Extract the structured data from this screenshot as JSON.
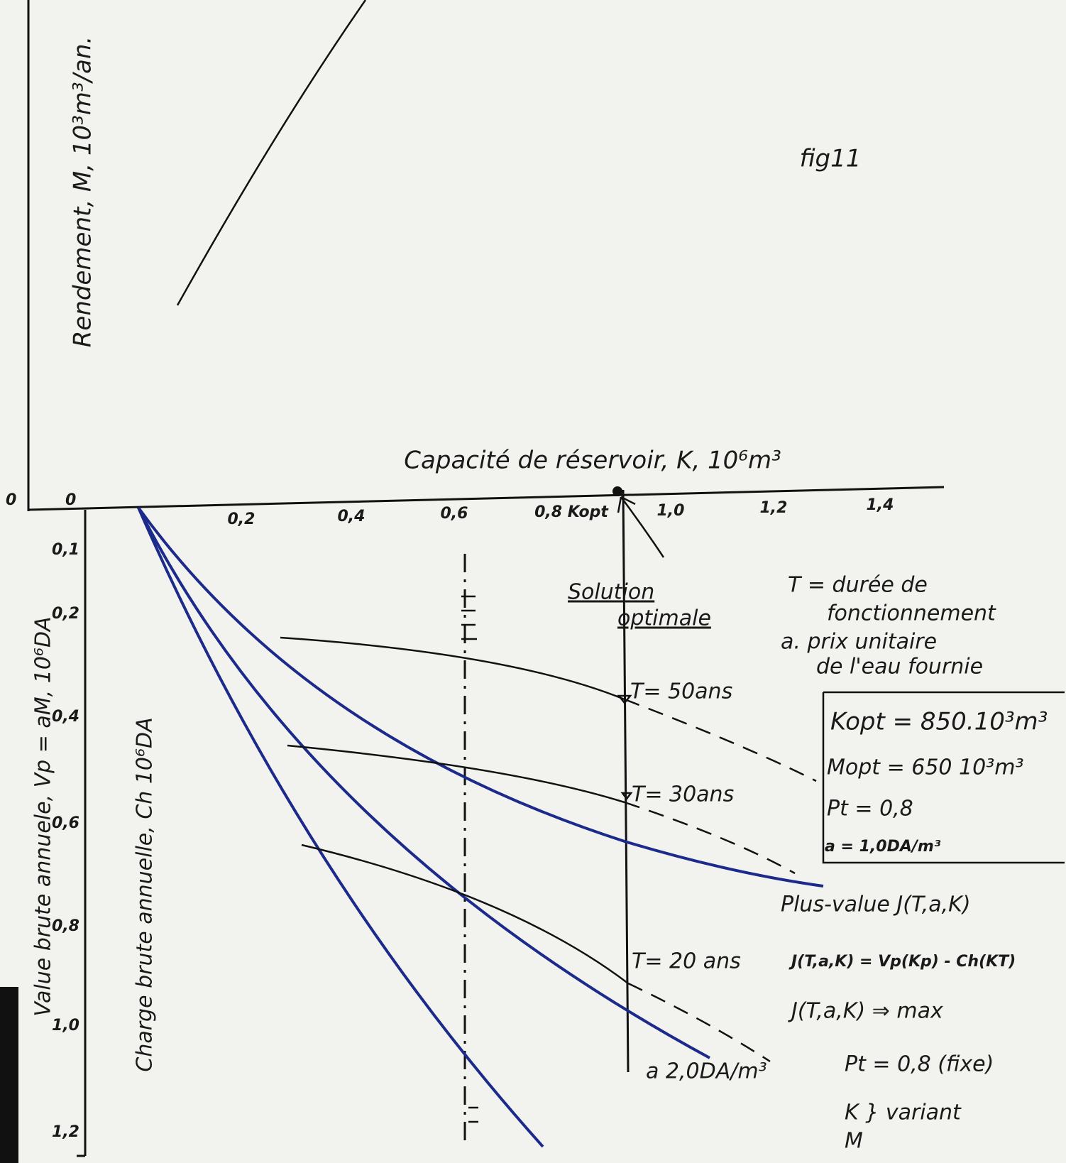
{
  "figure_label": "fig11",
  "top_axis_label": "Rendement, M, 10³m³/an.",
  "x_axis_label": "Capacité de réservoir, K, 10⁶m³",
  "origin_labels": [
    "0",
    "0"
  ],
  "x_ticks": [
    "0,2",
    "0,4",
    "0,6",
    "0,8 Kopt",
    "1,0",
    "1,2",
    "1,4"
  ],
  "lower_axis_ticks": [
    "0,1",
    "0,2",
    "0,4",
    "0,6",
    "0,8",
    "1,0",
    "1,2"
  ],
  "lower_axis_labels": [
    "Value brute annuele, Vp = aM, 10⁶DA",
    "Charge brute annuelle, Ch 10⁶DA"
  ],
  "solution": [
    "Solution",
    "optimale"
  ],
  "legend_notes": [
    "T = durée de",
    "fonctionnement",
    "a. prix unitaire",
    "de l'eau fournie"
  ],
  "curve_labels": [
    "T= 50ans",
    "T= 30ans",
    "T= 20 ans",
    "a 2,0DA/m³"
  ],
  "optimum_box": [
    "Kopt = 850.10³m³",
    "Mopt = 650 10³m³",
    "Pt = 0,8",
    "a = 1,0DA/m³"
  ],
  "notes": [
    "Plus-value J(T,a,K)",
    "J(T,a,K) = Vp(Kp) - Ch(KT)",
    "J(T,a,K) ⇒ max",
    "Pt = 0,8 (fixe)",
    "K } variant",
    "M"
  ]
}
